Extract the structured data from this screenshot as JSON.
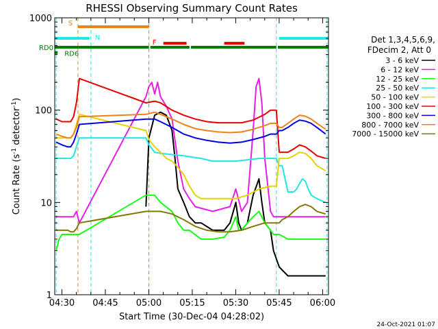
{
  "colors": {
    "background": "#ffffff",
    "axes": "#000000",
    "ch3_6": "#000000",
    "ch6_12": "#e61ee6",
    "ch12_25": "#14ff14",
    "ch25_50": "#1ee6e6",
    "ch50_100": "#e6d200",
    "ch100_300": "#e60000",
    "ch300_800": "#0000e6",
    "ch800_7000": "#f08214",
    "ch7000_15000": "#827800",
    "saa": "#f08214",
    "night": "#1ee6e6",
    "flare": "#e60000",
    "rd": "#007800"
  },
  "chart_data": {
    "type": "line",
    "title": "RHESSI Observing Summary Count Rates",
    "xlabel": "Start Time (30-Dec-04 04:28:02)",
    "ylabel_parts": [
      "Count Rate (s",
      "-1",
      " detector",
      "-1",
      ")"
    ],
    "log_y": true,
    "xlim": [
      -0.5,
      94
    ],
    "ylim": [
      1,
      1000
    ],
    "x_ticks": [
      {
        "label": "04:30",
        "value": 1.97
      },
      {
        "label": "04:45",
        "value": 16.97
      },
      {
        "label": "05:00",
        "value": 31.97
      },
      {
        "label": "05:15",
        "value": 46.97
      },
      {
        "label": "05:30",
        "value": 61.97
      },
      {
        "label": "05:45",
        "value": 76.97
      },
      {
        "label": "06:00",
        "value": 91.97
      }
    ],
    "y_ticks": [
      {
        "label": "1",
        "value": 1
      },
      {
        "label": "10",
        "value": 10
      },
      {
        "label": "100",
        "value": 100
      },
      {
        "label": "1000",
        "value": 1000
      }
    ],
    "legend_header": [
      "Det 1,3,4,5,6,9,",
      "FDecim 2, Att 0"
    ],
    "series": [
      {
        "name": "3 - 6 keV",
        "color_key": "ch3_6",
        "points": [
          [
            31,
            9
          ],
          [
            32,
            50
          ],
          [
            34,
            88
          ],
          [
            36,
            95
          ],
          [
            38,
            88
          ],
          [
            40,
            60
          ],
          [
            41,
            30
          ],
          [
            42,
            14
          ],
          [
            44,
            10
          ],
          [
            46,
            7
          ],
          [
            48,
            6
          ],
          [
            50,
            6
          ],
          [
            54,
            5
          ],
          [
            58,
            5
          ],
          [
            60,
            6
          ],
          [
            62,
            10
          ],
          [
            63,
            6
          ],
          [
            64,
            5
          ],
          [
            66,
            6
          ],
          [
            68,
            12
          ],
          [
            70,
            18
          ],
          [
            71,
            10
          ],
          [
            72,
            6
          ],
          [
            74,
            5
          ],
          [
            75,
            3
          ],
          [
            77,
            2
          ],
          [
            80,
            1.6
          ],
          [
            85,
            1.6
          ],
          [
            90,
            1.6
          ],
          [
            93,
            1.6
          ]
        ]
      },
      {
        "name": "6 - 12 keV",
        "color_key": "ch6_12",
        "points": [
          [
            0,
            7
          ],
          [
            5,
            7
          ],
          [
            6,
            7
          ],
          [
            7,
            8
          ],
          [
            8,
            6
          ],
          [
            31,
            140
          ],
          [
            32,
            180
          ],
          [
            33,
            200
          ],
          [
            34,
            150
          ],
          [
            35,
            200
          ],
          [
            36,
            140
          ],
          [
            38,
            110
          ],
          [
            40,
            80
          ],
          [
            42,
            28
          ],
          [
            44,
            14
          ],
          [
            46,
            11
          ],
          [
            48,
            9
          ],
          [
            54,
            8
          ],
          [
            60,
            9
          ],
          [
            62,
            14
          ],
          [
            64,
            8
          ],
          [
            66,
            10
          ],
          [
            68,
            60
          ],
          [
            69,
            180
          ],
          [
            70,
            220
          ],
          [
            71,
            120
          ],
          [
            72,
            30
          ],
          [
            74,
            8
          ],
          [
            75,
            7
          ],
          [
            77,
            7
          ],
          [
            80,
            7
          ],
          [
            85,
            7
          ],
          [
            90,
            7
          ],
          [
            93,
            7
          ]
        ]
      },
      {
        "name": "12 - 25 keV",
        "color_key": "ch12_25",
        "points": [
          [
            0,
            3
          ],
          [
            1,
            4
          ],
          [
            2,
            4.5
          ],
          [
            5,
            4.5
          ],
          [
            6,
            4.5
          ],
          [
            7,
            4.5
          ],
          [
            8,
            4.5
          ],
          [
            31,
            12
          ],
          [
            34,
            12
          ],
          [
            36,
            10
          ],
          [
            40,
            8
          ],
          [
            42,
            6
          ],
          [
            44,
            5
          ],
          [
            46,
            5
          ],
          [
            50,
            4
          ],
          [
            54,
            4
          ],
          [
            58,
            4.2
          ],
          [
            60,
            5
          ],
          [
            62,
            7
          ],
          [
            63,
            5
          ],
          [
            64,
            5
          ],
          [
            66,
            6
          ],
          [
            68,
            7
          ],
          [
            70,
            8
          ],
          [
            72,
            6
          ],
          [
            74,
            5
          ],
          [
            75,
            4.5
          ],
          [
            77,
            4.5
          ],
          [
            80,
            4
          ],
          [
            85,
            4
          ],
          [
            90,
            4
          ],
          [
            93,
            4
          ]
        ]
      },
      {
        "name": "25 - 50 keV",
        "color_key": "ch25_50",
        "points": [
          [
            0,
            30
          ],
          [
            2,
            30
          ],
          [
            4,
            30
          ],
          [
            5,
            30
          ],
          [
            6,
            32
          ],
          [
            7,
            40
          ],
          [
            8,
            50
          ],
          [
            31,
            50
          ],
          [
            32,
            42
          ],
          [
            34,
            35
          ],
          [
            36,
            34
          ],
          [
            40,
            33
          ],
          [
            44,
            32
          ],
          [
            50,
            30
          ],
          [
            54,
            28
          ],
          [
            58,
            28
          ],
          [
            62,
            28
          ],
          [
            66,
            29
          ],
          [
            70,
            30
          ],
          [
            74,
            30
          ],
          [
            76,
            30
          ],
          [
            77,
            25
          ],
          [
            78,
            25
          ],
          [
            80,
            13
          ],
          [
            82,
            13
          ],
          [
            83,
            14
          ],
          [
            84,
            16
          ],
          [
            85,
            18
          ],
          [
            86,
            17
          ],
          [
            87,
            14
          ],
          [
            88,
            12
          ],
          [
            90,
            11
          ],
          [
            93,
            10
          ]
        ]
      },
      {
        "name": "50 - 100 keV",
        "color_key": "ch50_100",
        "points": [
          [
            0,
            50
          ],
          [
            2,
            50
          ],
          [
            4,
            50
          ],
          [
            5,
            50
          ],
          [
            6,
            55
          ],
          [
            7,
            70
          ],
          [
            8,
            90
          ],
          [
            31,
            60
          ],
          [
            32,
            48
          ],
          [
            34,
            40
          ],
          [
            36,
            35
          ],
          [
            38,
            30
          ],
          [
            40,
            28
          ],
          [
            42,
            24
          ],
          [
            44,
            20
          ],
          [
            46,
            15
          ],
          [
            48,
            12
          ],
          [
            50,
            11
          ],
          [
            54,
            11
          ],
          [
            58,
            11
          ],
          [
            62,
            11
          ],
          [
            66,
            12
          ],
          [
            70,
            14
          ],
          [
            74,
            15
          ],
          [
            76,
            15
          ],
          [
            77,
            30
          ],
          [
            78,
            30
          ],
          [
            80,
            30
          ],
          [
            82,
            32
          ],
          [
            84,
            35
          ],
          [
            86,
            34
          ],
          [
            88,
            30
          ],
          [
            90,
            25
          ],
          [
            93,
            22
          ]
        ]
      },
      {
        "name": "100 - 300 keV",
        "color_key": "ch100_300",
        "points": [
          [
            0,
            80
          ],
          [
            2,
            75
          ],
          [
            4,
            75
          ],
          [
            5,
            75
          ],
          [
            6,
            85
          ],
          [
            7,
            120
          ],
          [
            8,
            220
          ],
          [
            31,
            120
          ],
          [
            34,
            125
          ],
          [
            36,
            120
          ],
          [
            40,
            100
          ],
          [
            44,
            88
          ],
          [
            48,
            80
          ],
          [
            52,
            75
          ],
          [
            56,
            73
          ],
          [
            60,
            73
          ],
          [
            64,
            73
          ],
          [
            68,
            78
          ],
          [
            72,
            90
          ],
          [
            74,
            100
          ],
          [
            76,
            100
          ],
          [
            77,
            35
          ],
          [
            78,
            35
          ],
          [
            80,
            35
          ],
          [
            82,
            38
          ],
          [
            84,
            42
          ],
          [
            86,
            40
          ],
          [
            88,
            36
          ],
          [
            90,
            32
          ],
          [
            93,
            30
          ]
        ]
      },
      {
        "name": "300 - 800 keV",
        "color_key": "ch300_800",
        "points": [
          [
            0,
            45
          ],
          [
            2,
            42
          ],
          [
            4,
            40
          ],
          [
            5,
            40
          ],
          [
            6,
            45
          ],
          [
            7,
            55
          ],
          [
            8,
            70
          ],
          [
            31,
            80
          ],
          [
            34,
            80
          ],
          [
            36,
            75
          ],
          [
            40,
            65
          ],
          [
            44,
            55
          ],
          [
            48,
            50
          ],
          [
            52,
            47
          ],
          [
            56,
            45
          ],
          [
            60,
            44
          ],
          [
            64,
            45
          ],
          [
            68,
            48
          ],
          [
            72,
            52
          ],
          [
            74,
            55
          ],
          [
            76,
            55
          ],
          [
            77,
            60
          ],
          [
            78,
            60
          ],
          [
            80,
            65
          ],
          [
            82,
            72
          ],
          [
            84,
            78
          ],
          [
            86,
            76
          ],
          [
            88,
            72
          ],
          [
            90,
            65
          ],
          [
            93,
            55
          ]
        ]
      },
      {
        "name": "800 - 7000 keV",
        "color_key": "ch800_7000",
        "points": [
          [
            0,
            55
          ],
          [
            2,
            52
          ],
          [
            4,
            50
          ],
          [
            5,
            50
          ],
          [
            6,
            55
          ],
          [
            7,
            65
          ],
          [
            8,
            85
          ],
          [
            31,
            90
          ],
          [
            34,
            95
          ],
          [
            36,
            90
          ],
          [
            40,
            80
          ],
          [
            44,
            70
          ],
          [
            48,
            63
          ],
          [
            52,
            60
          ],
          [
            56,
            58
          ],
          [
            60,
            57
          ],
          [
            64,
            58
          ],
          [
            68,
            62
          ],
          [
            72,
            68
          ],
          [
            74,
            72
          ],
          [
            76,
            72
          ],
          [
            77,
            65
          ],
          [
            78,
            65
          ],
          [
            80,
            72
          ],
          [
            82,
            80
          ],
          [
            84,
            88
          ],
          [
            86,
            86
          ],
          [
            88,
            80
          ],
          [
            90,
            72
          ],
          [
            93,
            62
          ]
        ]
      },
      {
        "name": "7000 - 15000 keV",
        "color_key": "ch7000_15000",
        "points": [
          [
            0,
            5
          ],
          [
            2,
            5
          ],
          [
            4,
            5
          ],
          [
            5,
            4.8
          ],
          [
            6,
            4.8
          ],
          [
            7,
            5.2
          ],
          [
            8,
            6
          ],
          [
            31,
            8
          ],
          [
            34,
            8
          ],
          [
            36,
            8
          ],
          [
            40,
            7.5
          ],
          [
            44,
            6.5
          ],
          [
            48,
            5.5
          ],
          [
            52,
            5
          ],
          [
            56,
            4.8
          ],
          [
            60,
            4.8
          ],
          [
            64,
            5
          ],
          [
            68,
            5.5
          ],
          [
            72,
            6
          ],
          [
            74,
            6
          ],
          [
            76,
            6
          ],
          [
            77,
            6
          ],
          [
            78,
            6.5
          ],
          [
            80,
            7
          ],
          [
            82,
            8
          ],
          [
            84,
            9
          ],
          [
            86,
            9.5
          ],
          [
            88,
            9
          ],
          [
            90,
            8
          ],
          [
            93,
            7.5
          ]
        ]
      }
    ],
    "annotations": {
      "saa_label": "S",
      "night_label": "N",
      "flare_label": "F",
      "rd0_label": "RD0",
      "rd6_label": "RD6",
      "saa_bar": [
        7.5,
        32
      ],
      "night_bars": [
        [
          -0.5,
          11.5
        ],
        [
          77,
          94
        ]
      ],
      "flare_bars": [
        [
          37,
          45
        ],
        [
          58,
          65
        ]
      ],
      "rd0_bars": [
        [
          -0.5,
          32
        ],
        [
          32.5,
          46
        ],
        [
          46.5,
          76
        ],
        [
          76.5,
          94
        ]
      ],
      "rd6_bar": [
        -0.5,
        0.5
      ],
      "saa_boundaries": [
        7.5,
        32
      ],
      "night_boundaries": [
        0,
        12,
        76,
        93.5
      ]
    },
    "timestamp": "24-Oct-2021 01:07"
  }
}
